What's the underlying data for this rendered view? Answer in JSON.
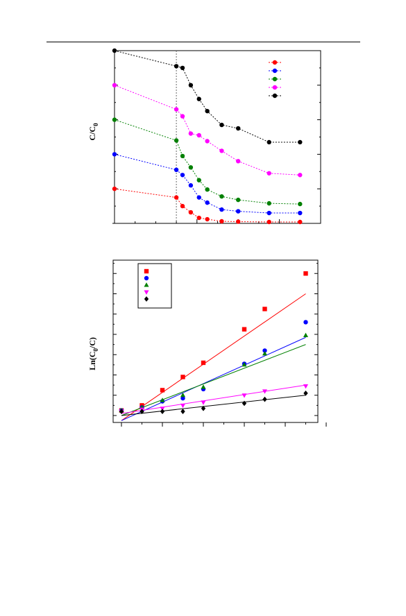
{
  "chart_data": [
    {
      "type": "line",
      "title": "",
      "xlabel": "",
      "ylabel": "C/C",
      "ylabel_subscript": "0",
      "markers": "circle",
      "line_style": "dotted",
      "legend_position": "top-right",
      "vertical_reference_line_at_x": 0,
      "xlim": [
        -30,
        70
      ],
      "ylim": [
        0,
        5
      ],
      "x": [
        -30,
        0,
        3,
        7,
        11,
        15,
        22,
        30,
        45,
        60
      ],
      "series": [
        {
          "color": "#ff0000",
          "values": [
            1.0,
            0.75,
            0.5,
            0.32,
            0.16,
            0.12,
            0.06,
            0.05,
            0.04,
            0.04
          ]
        },
        {
          "color": "#0000ff",
          "values": [
            2.0,
            1.55,
            1.4,
            1.1,
            0.75,
            0.6,
            0.4,
            0.35,
            0.3,
            0.3
          ]
        },
        {
          "color": "#008000",
          "values": [
            3.0,
            2.4,
            1.95,
            1.62,
            1.25,
            0.98,
            0.78,
            0.68,
            0.58,
            0.56
          ]
        },
        {
          "color": "#ff00ff",
          "values": [
            4.0,
            3.3,
            3.1,
            2.6,
            2.55,
            2.38,
            2.1,
            1.8,
            1.45,
            1.4
          ]
        },
        {
          "color": "#000000",
          "values": [
            5.0,
            4.55,
            4.5,
            4.0,
            3.6,
            3.25,
            2.85,
            2.75,
            2.35,
            2.35
          ]
        }
      ]
    },
    {
      "type": "scatter",
      "title": "",
      "xlabel": "",
      "ylabel": "Ln(C",
      "ylabel_subscript": "0",
      "ylabel_suffix": "/C)",
      "fit_lines": true,
      "legend_position": "top-left",
      "xlim": [
        0,
        100
      ],
      "ylim": [
        0,
        1.6
      ],
      "x": [
        0,
        10,
        20,
        30,
        40,
        60,
        70,
        90
      ],
      "series": [
        {
          "marker": "square",
          "color": "#ff0000",
          "values": [
            0.05,
            0.1,
            0.25,
            0.38,
            0.52,
            0.85,
            1.05,
            1.4
          ],
          "fit": {
            "y0": -0.05,
            "y90": 1.2
          }
        },
        {
          "marker": "circle",
          "color": "#0000ff",
          "values": [
            0.05,
            0.08,
            0.14,
            0.17,
            0.26,
            0.51,
            0.64,
            0.92
          ],
          "fit": {
            "y0": -0.05,
            "y90": 0.77
          }
        },
        {
          "marker": "triangle-up",
          "color": "#008000",
          "values": [
            0.05,
            0.08,
            0.15,
            0.2,
            0.28,
            0.5,
            0.61,
            0.79
          ],
          "fit": {
            "y0": 0.0,
            "y90": 0.7
          }
        },
        {
          "marker": "triangle-down",
          "color": "#ff00ff",
          "values": [
            0.04,
            0.06,
            0.07,
            0.1,
            0.13,
            0.2,
            0.24,
            0.29
          ],
          "fit": {
            "y0": 0.02,
            "y90": 0.3
          }
        },
        {
          "marker": "diamond",
          "color": "#000000",
          "values": [
            0.04,
            0.04,
            0.04,
            0.04,
            0.07,
            0.12,
            0.16,
            0.22
          ],
          "fit": {
            "y0": 0.0,
            "y90": 0.2
          }
        }
      ]
    }
  ]
}
